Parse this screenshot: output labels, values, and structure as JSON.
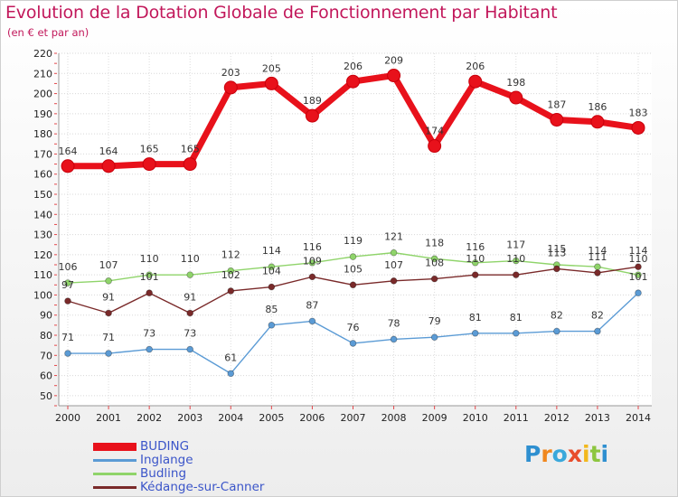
{
  "header": {
    "title": "Evolution de la Dotation Globale de Fonctionnement par Habitant",
    "subtitle": "(en € et par an)"
  },
  "logo": {
    "text": "Proxiti",
    "letter_colors": [
      "#2e8fd0",
      "#f0871e",
      "#3aa8db",
      "#e84d2c",
      "#f2b81d",
      "#8dc63f",
      "#2e8fd0"
    ]
  },
  "chart_data": {
    "type": "line",
    "title": "Evolution de la Dotation Globale de Fonctionnement par Habitant",
    "subtitle": "(en € et par an)",
    "xlabel": "",
    "ylabel": "",
    "ylim": [
      45,
      220
    ],
    "yticks": [
      50,
      60,
      70,
      80,
      90,
      100,
      110,
      120,
      130,
      140,
      150,
      160,
      170,
      180,
      190,
      200,
      210,
      220
    ],
    "grid": true,
    "legend_position": "bottom-left",
    "categories": [
      "2000",
      "2001",
      "2002",
      "2003",
      "2004",
      "2005",
      "2006",
      "2007",
      "2008",
      "2009",
      "2010",
      "2011",
      "2012",
      "2013",
      "2014"
    ],
    "series": [
      {
        "name": "BUDING",
        "color": "#e8111b",
        "emphasis": true,
        "values": [
          164,
          164,
          165,
          165,
          203,
          205,
          189,
          206,
          209,
          174,
          206,
          198,
          187,
          186,
          183
        ],
        "labels": [
          "164",
          "164",
          "165",
          "165",
          "203",
          "205",
          "189",
          "206",
          "209",
          "174",
          "206",
          "198",
          "187",
          "186",
          "183"
        ]
      },
      {
        "name": "Inglange",
        "color": "#5b9bd5",
        "values": [
          71,
          71,
          73,
          73,
          61,
          85,
          87,
          76,
          78,
          79,
          81,
          81,
          82,
          82,
          101
        ],
        "labels": [
          "71",
          "71",
          "73",
          "73",
          "61",
          "85",
          "87",
          "76",
          "78",
          "79",
          "81",
          "81",
          "82",
          "82",
          "101"
        ]
      },
      {
        "name": "Budling",
        "color": "#8fd46a",
        "values": [
          106,
          107,
          110,
          110,
          112,
          114,
          116,
          119,
          121,
          118,
          116,
          117,
          115,
          114,
          110
        ],
        "labels": [
          "106",
          "107",
          "110",
          "110",
          "112",
          "114",
          "116",
          "119",
          "121",
          "118",
          "116",
          "117",
          "115",
          "114",
          "110"
        ]
      },
      {
        "name": "Kédange-sur-Canner",
        "color": "#7a2a2a",
        "values": [
          97,
          91,
          101,
          91,
          102,
          104,
          109,
          105,
          107,
          108,
          110,
          110,
          113,
          111,
          114
        ],
        "labels": [
          "97",
          "91",
          "101",
          "91",
          "102",
          "104",
          "109",
          "105",
          "107",
          "108",
          "110",
          "110",
          "113",
          "111",
          "114"
        ]
      }
    ]
  }
}
